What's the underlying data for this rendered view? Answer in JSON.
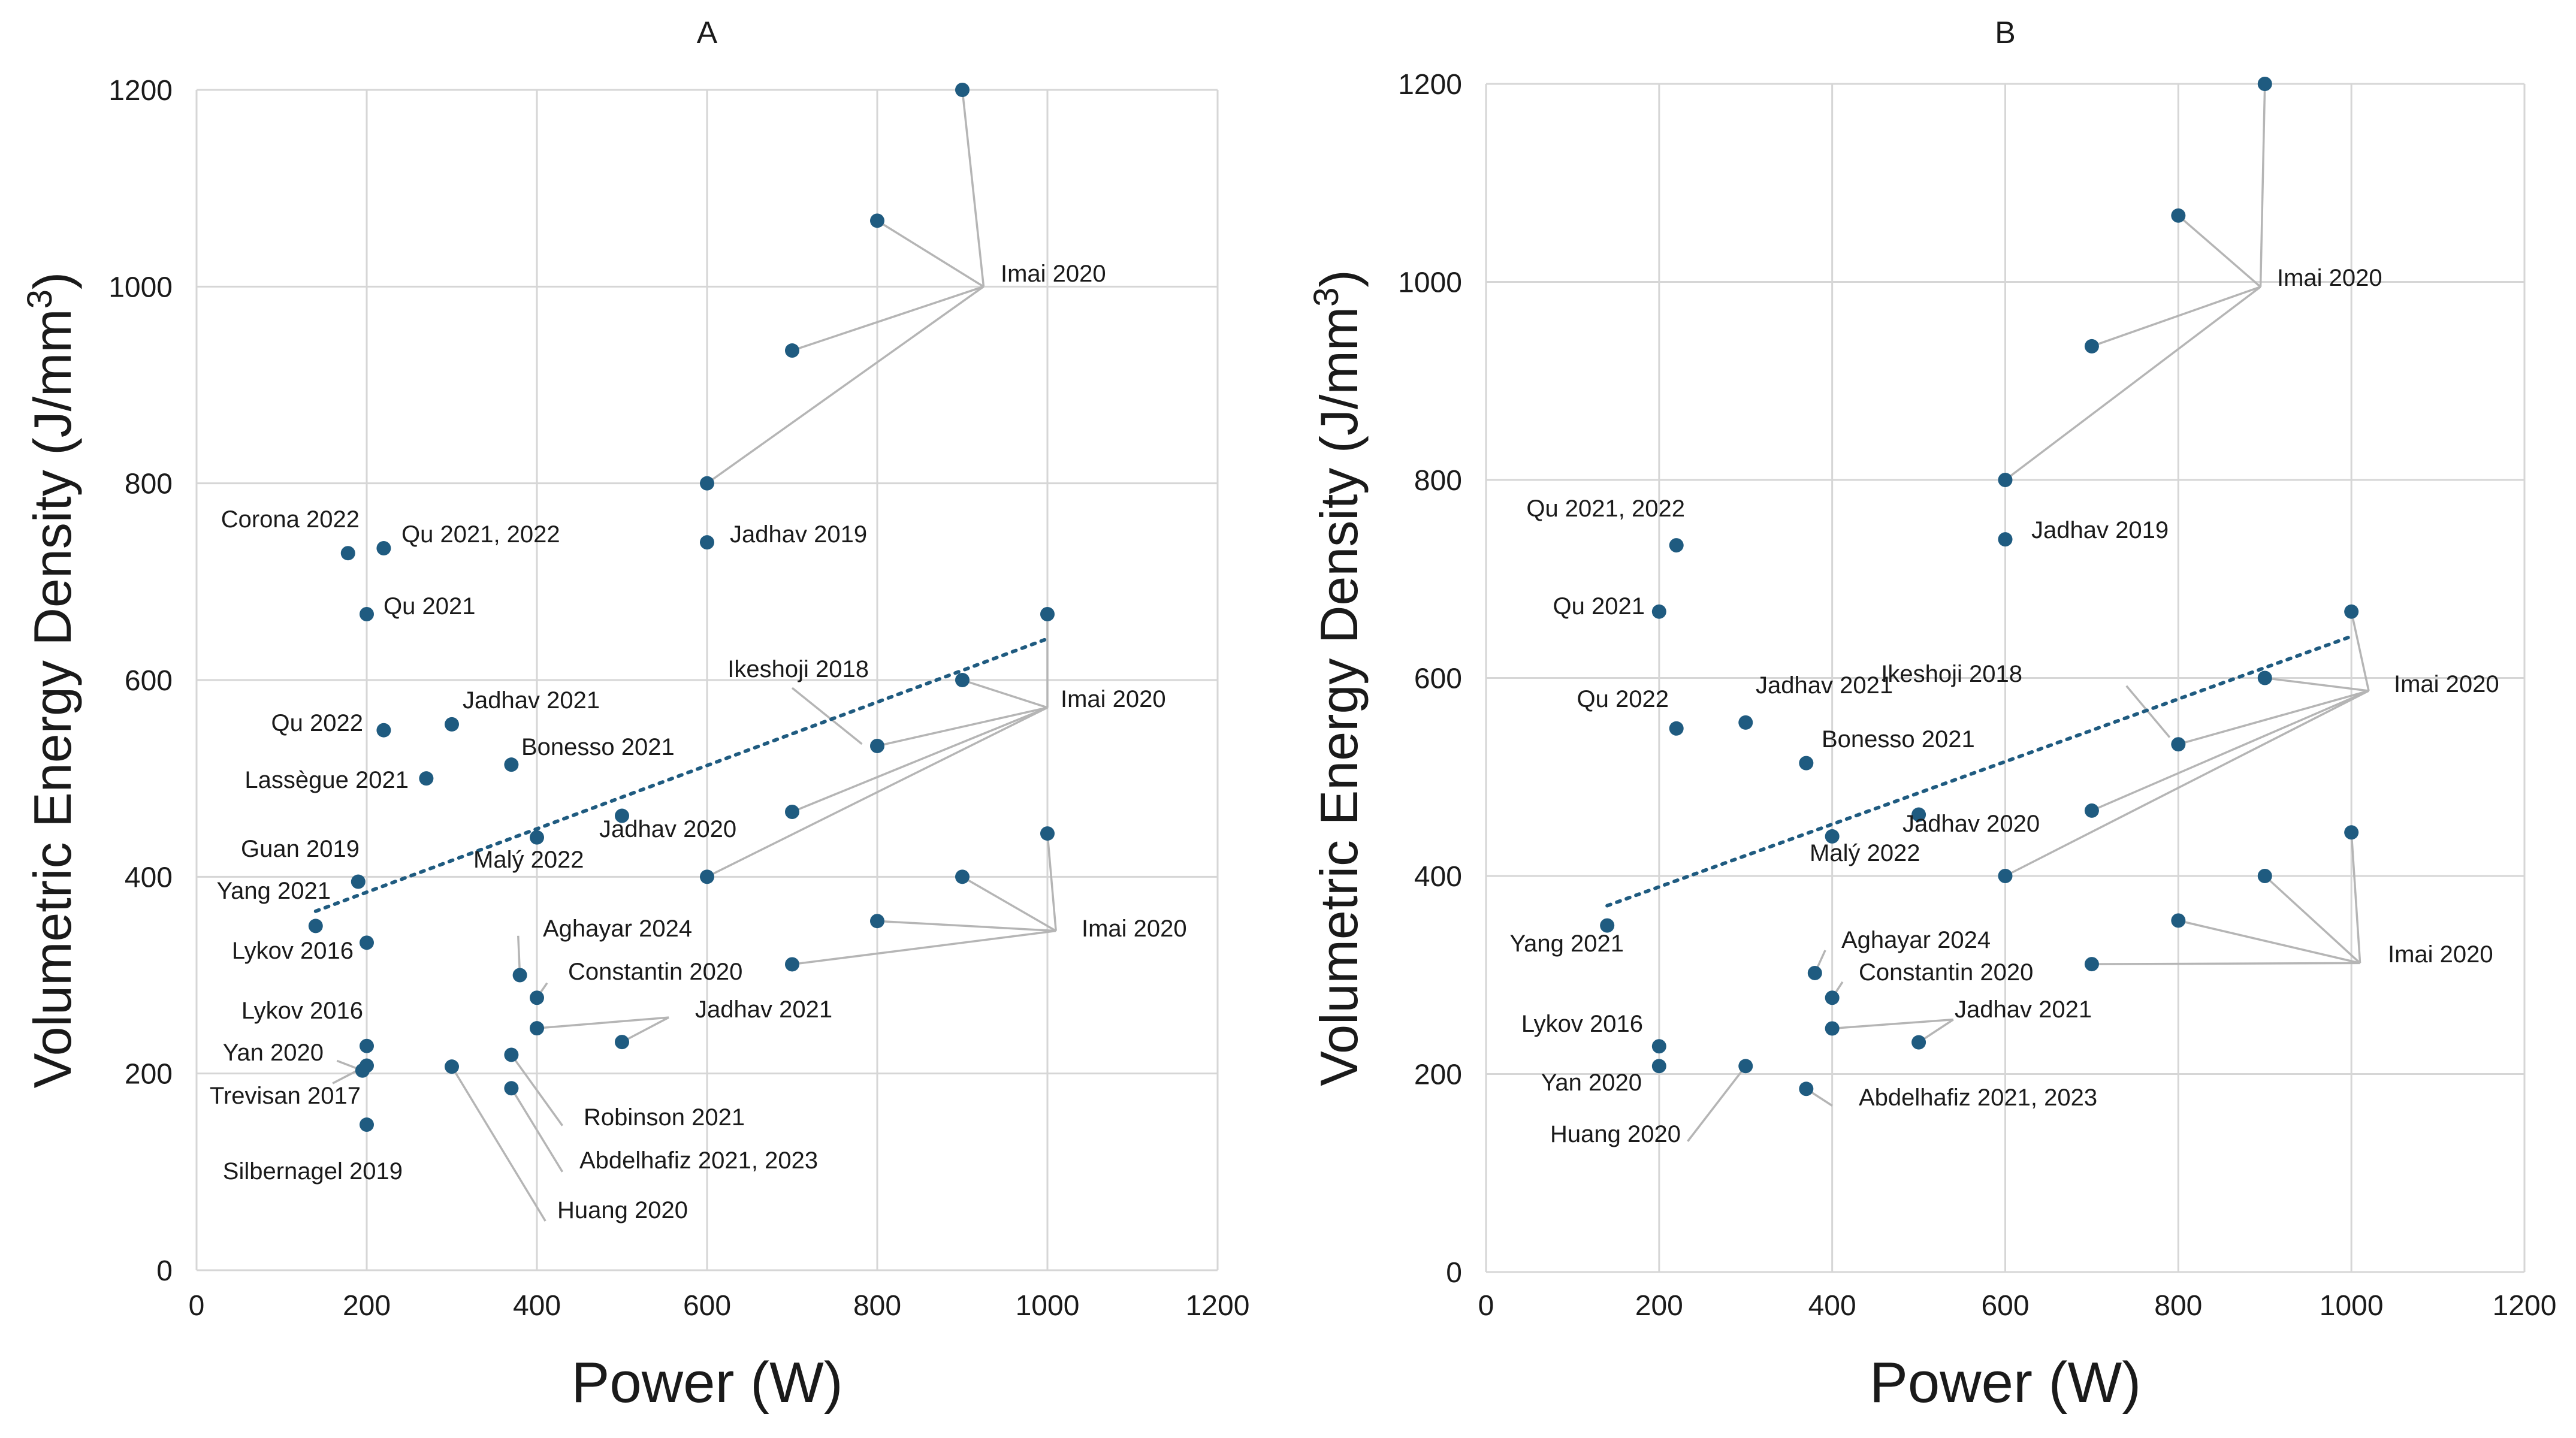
{
  "chart_data": [
    {
      "type": "scatter",
      "title": "A",
      "xlabel": "Power (W)",
      "ylabel": "Volumetric Energy Density (J/mm",
      "ylabel_sup": "3",
      "ylabel_close": ")",
      "xlim": [
        0,
        1200
      ],
      "ylim": [
        0,
        1200
      ],
      "xticks": [
        0,
        200,
        400,
        600,
        800,
        1000,
        1200
      ],
      "yticks": [
        0,
        200,
        400,
        600,
        800,
        1000,
        1200
      ],
      "trendline": {
        "x": [
          140,
          1000
        ],
        "y": [
          365,
          642
        ],
        "style": "dotted"
      },
      "points": [
        {
          "x": 900,
          "y": 1200
        },
        {
          "x": 800,
          "y": 1067
        },
        {
          "x": 700,
          "y": 935
        },
        {
          "x": 600,
          "y": 800
        },
        {
          "x": 178,
          "y": 729
        },
        {
          "x": 220,
          "y": 734
        },
        {
          "x": 600,
          "y": 740
        },
        {
          "x": 200,
          "y": 667
        },
        {
          "x": 1000,
          "y": 667
        },
        {
          "x": 900,
          "y": 600
        },
        {
          "x": 800,
          "y": 533
        },
        {
          "x": 700,
          "y": 466
        },
        {
          "x": 600,
          "y": 400
        },
        {
          "x": 220,
          "y": 549
        },
        {
          "x": 300,
          "y": 555
        },
        {
          "x": 370,
          "y": 514
        },
        {
          "x": 270,
          "y": 500
        },
        {
          "x": 500,
          "y": 462
        },
        {
          "x": 400,
          "y": 440
        },
        {
          "x": 190,
          "y": 395
        },
        {
          "x": 140,
          "y": 350
        },
        {
          "x": 200,
          "y": 333
        },
        {
          "x": 1000,
          "y": 444
        },
        {
          "x": 900,
          "y": 400
        },
        {
          "x": 800,
          "y": 355
        },
        {
          "x": 700,
          "y": 311
        },
        {
          "x": 380,
          "y": 300
        },
        {
          "x": 400,
          "y": 277
        },
        {
          "x": 400,
          "y": 246
        },
        {
          "x": 500,
          "y": 232
        },
        {
          "x": 200,
          "y": 228
        },
        {
          "x": 195,
          "y": 203
        },
        {
          "x": 200,
          "y": 208
        },
        {
          "x": 300,
          "y": 207
        },
        {
          "x": 370,
          "y": 219
        },
        {
          "x": 370,
          "y": 185
        },
        {
          "x": 200,
          "y": 148
        }
      ],
      "labels": [
        {
          "text": "Imai 2020",
          "ax": 925,
          "ay": 1000,
          "targets": [
            [
              900,
              1200
            ],
            [
              800,
              1067
            ],
            [
              700,
              935
            ],
            [
              600,
              800
            ]
          ]
        },
        {
          "text": "Corona 2022"
        },
        {
          "text": "Qu 2021, 2022"
        },
        {
          "text": "Jadhav 2019"
        },
        {
          "text": "Qu 2021"
        },
        {
          "text": "Ikeshoji 2018",
          "ax": 782,
          "ay": 535,
          "targets": [
            [
              700,
              592
            ]
          ]
        },
        {
          "text": "Imai 2020",
          "ax": 1000,
          "ay": 572,
          "targets": [
            [
              1000,
              667
            ],
            [
              900,
              600
            ],
            [
              800,
              533
            ],
            [
              700,
              466
            ],
            [
              600,
              400
            ]
          ]
        },
        {
          "text": "Qu 2022"
        },
        {
          "text": "Jadhav 2021"
        },
        {
          "text": "Bonesso 2021"
        },
        {
          "text": "Lassègue 2021"
        },
        {
          "text": "Jadhav 2020"
        },
        {
          "text": "Malý 2022"
        },
        {
          "text": "Guan 2019"
        },
        {
          "text": "Yang 2021"
        },
        {
          "text": "Lykov 2016"
        },
        {
          "text": "Imai 2020",
          "ax": 1010,
          "ay": 345,
          "targets": [
            [
              1000,
              444
            ],
            [
              900,
              400
            ],
            [
              800,
              355
            ],
            [
              700,
              311
            ]
          ]
        },
        {
          "text": "Aghayar 2024",
          "ax": 380,
          "ay": 300,
          "targets": [
            [
              378,
              340
            ]
          ]
        },
        {
          "text": "Constantin 2020",
          "ax": 400,
          "ay": 277,
          "targets": [
            [
              412,
              292
            ]
          ]
        },
        {
          "text": "Jadhav 2021",
          "ax": 555,
          "ay": 257,
          "targets": [
            [
              400,
              246
            ],
            [
              500,
              232
            ]
          ]
        },
        {
          "text": "Lykov 2016"
        },
        {
          "text": "Yan 2020",
          "ax": 195,
          "ay": 203,
          "targets": [
            [
              165,
              213
            ]
          ]
        },
        {
          "text": "Trevisan 2017",
          "ax": 200,
          "ay": 208,
          "targets": [
            [
              160,
              190
            ]
          ]
        },
        {
          "text": "Robinson 2021",
          "ax": 370,
          "ay": 219,
          "targets": [
            [
              430,
              147
            ]
          ]
        },
        {
          "text": "Silbernagel 2019"
        },
        {
          "text": "Abdelhafiz 2021, 2023",
          "ax": 370,
          "ay": 185,
          "targets": [
            [
              430,
              100
            ]
          ]
        },
        {
          "text": "Huang 2020",
          "ax": 300,
          "ay": 207,
          "targets": [
            [
              410,
              50
            ]
          ]
        }
      ]
    },
    {
      "type": "scatter",
      "title": "B",
      "xlabel": "Power (W)",
      "ylabel": "Volumetric Energy Density (J/mm",
      "ylabel_sup": "3",
      "ylabel_close": ")",
      "xlim": [
        0,
        1200
      ],
      "ylim": [
        0,
        1200
      ],
      "xticks": [
        0,
        200,
        400,
        600,
        800,
        1000,
        1200
      ],
      "yticks": [
        0,
        200,
        400,
        600,
        800,
        1000,
        1200
      ],
      "trendline": {
        "x": [
          140,
          1000
        ],
        "y": [
          370,
          642
        ],
        "style": "dotted"
      },
      "points": [
        {
          "x": 900,
          "y": 1200
        },
        {
          "x": 800,
          "y": 1067
        },
        {
          "x": 700,
          "y": 935
        },
        {
          "x": 600,
          "y": 800
        },
        {
          "x": 220,
          "y": 734
        },
        {
          "x": 600,
          "y": 740
        },
        {
          "x": 200,
          "y": 667
        },
        {
          "x": 1000,
          "y": 667
        },
        {
          "x": 900,
          "y": 600
        },
        {
          "x": 800,
          "y": 533
        },
        {
          "x": 700,
          "y": 466
        },
        {
          "x": 600,
          "y": 400
        },
        {
          "x": 220,
          "y": 549
        },
        {
          "x": 300,
          "y": 555
        },
        {
          "x": 370,
          "y": 514
        },
        {
          "x": 500,
          "y": 462
        },
        {
          "x": 400,
          "y": 440
        },
        {
          "x": 140,
          "y": 350
        },
        {
          "x": 1000,
          "y": 444
        },
        {
          "x": 900,
          "y": 400
        },
        {
          "x": 800,
          "y": 355
        },
        {
          "x": 700,
          "y": 311
        },
        {
          "x": 380,
          "y": 302
        },
        {
          "x": 400,
          "y": 277
        },
        {
          "x": 400,
          "y": 246
        },
        {
          "x": 500,
          "y": 232
        },
        {
          "x": 200,
          "y": 228
        },
        {
          "x": 200,
          "y": 208
        },
        {
          "x": 300,
          "y": 208
        },
        {
          "x": 370,
          "y": 185
        }
      ],
      "labels": [
        {
          "text": "Imai 2020",
          "ax": 895,
          "ay": 995,
          "targets": [
            [
              900,
              1200
            ],
            [
              800,
              1067
            ],
            [
              700,
              935
            ],
            [
              600,
              800
            ]
          ]
        },
        {
          "text": "Qu 2021, 2022"
        },
        {
          "text": "Jadhav 2019"
        },
        {
          "text": "Qu 2021"
        },
        {
          "text": "Ikeshoji 2018",
          "ax": 790,
          "ay": 540,
          "targets": [
            [
              740,
              592
            ]
          ]
        },
        {
          "text": "Imai 2020",
          "ax": 1020,
          "ay": 587,
          "targets": [
            [
              1000,
              667
            ],
            [
              900,
              600
            ],
            [
              800,
              533
            ],
            [
              700,
              466
            ],
            [
              600,
              400
            ]
          ]
        },
        {
          "text": "Qu 2022"
        },
        {
          "text": "Jadhav 2021"
        },
        {
          "text": "Bonesso 2021"
        },
        {
          "text": "Jadhav 2020"
        },
        {
          "text": "Malý 2022"
        },
        {
          "text": "Yang 2021"
        },
        {
          "text": "Imai 2020",
          "ax": 1010,
          "ay": 312,
          "targets": [
            [
              1000,
              444
            ],
            [
              900,
              400
            ],
            [
              800,
              355
            ],
            [
              700,
              311
            ]
          ]
        },
        {
          "text": "Aghayar 2024",
          "ax": 380,
          "ay": 302,
          "targets": [
            [
              392,
              325
            ]
          ]
        },
        {
          "text": "Constantin 2020",
          "ax": 400,
          "ay": 277,
          "targets": [
            [
              412,
              293
            ]
          ]
        },
        {
          "text": "Jadhav 2021",
          "ax": 540,
          "ay": 255,
          "targets": [
            [
              400,
              246
            ],
            [
              500,
              232
            ]
          ]
        },
        {
          "text": "Lykov 2016"
        },
        {
          "text": "Yan 2020"
        },
        {
          "text": "Abdelhafiz 2021, 2023",
          "ax": 370,
          "ay": 185,
          "targets": [
            [
              400,
              168
            ]
          ]
        },
        {
          "text": "Huang 2020",
          "ax": 300,
          "ay": 208,
          "targets": [
            [
              233,
              132
            ]
          ]
        }
      ]
    }
  ]
}
